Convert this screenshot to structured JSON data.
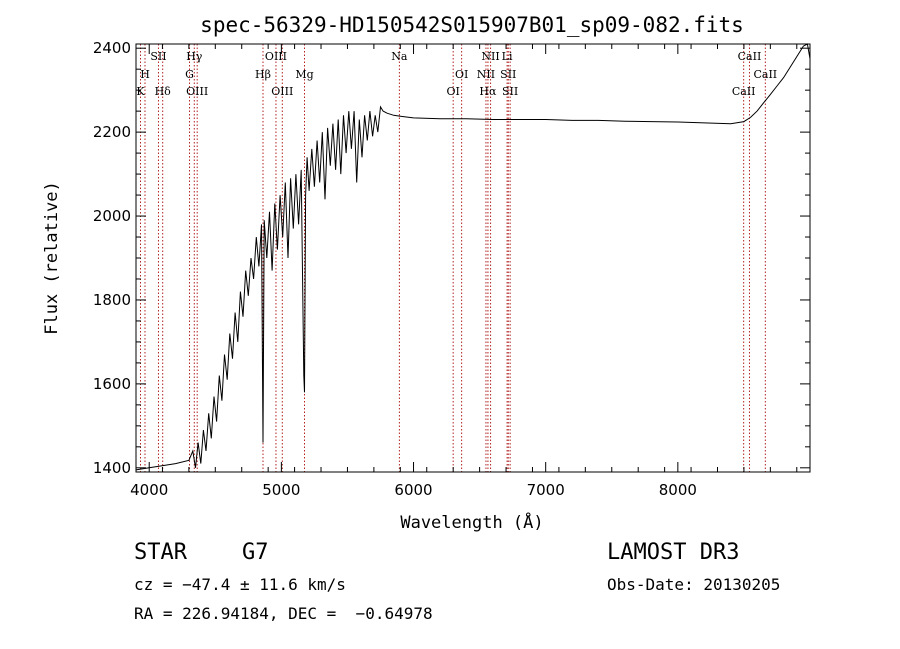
{
  "chart_data": {
    "type": "line",
    "title": "spec-56329-HD150542S015907B01_sp09-082.fits",
    "xlabel": "Wavelength (Å)",
    "ylabel": "Flux (relative)",
    "xlim": [
      3900,
      9000
    ],
    "ylim": [
      1390,
      2410
    ],
    "xticks": [
      4000,
      5000,
      6000,
      7000,
      8000
    ],
    "yticks": [
      1400,
      1600,
      1800,
      2000,
      2200,
      2400
    ],
    "series": [
      {
        "name": "spectrum",
        "x": [
          3900,
          4000,
          4200,
          4300,
          4330,
          4350,
          4370,
          4390,
          4410,
          4430,
          4450,
          4470,
          4490,
          4510,
          4530,
          4550,
          4570,
          4590,
          4610,
          4630,
          4650,
          4670,
          4690,
          4710,
          4730,
          4750,
          4770,
          4790,
          4810,
          4830,
          4850,
          4861,
          4870,
          4890,
          4910,
          4930,
          4950,
          4970,
          4990,
          5010,
          5030,
          5050,
          5070,
          5090,
          5110,
          5130,
          5150,
          5170,
          5175,
          5183,
          5195,
          5210,
          5230,
          5250,
          5270,
          5290,
          5310,
          5330,
          5350,
          5370,
          5390,
          5410,
          5430,
          5450,
          5470,
          5490,
          5510,
          5530,
          5550,
          5570,
          5590,
          5610,
          5630,
          5650,
          5670,
          5690,
          5710,
          5730,
          5750,
          5770,
          5800,
          5850,
          5900,
          6000,
          6200,
          6400,
          6600,
          6800,
          7000,
          7200,
          7400,
          7600,
          7800,
          8000,
          8200,
          8400,
          8500,
          8550,
          8600,
          8650,
          8700,
          8750,
          8800,
          8850,
          8900,
          8950,
          8980,
          9000
        ],
        "y": [
          1395,
          1400,
          1410,
          1418,
          1440,
          1400,
          1460,
          1410,
          1490,
          1440,
          1530,
          1470,
          1570,
          1510,
          1620,
          1560,
          1670,
          1610,
          1720,
          1660,
          1770,
          1700,
          1820,
          1760,
          1870,
          1810,
          1900,
          1850,
          1950,
          1880,
          1980,
          1460,
          1990,
          1900,
          2010,
          1870,
          2030,
          1920,
          2050,
          1950,
          2080,
          1900,
          2090,
          1970,
          2100,
          1980,
          2110,
          1620,
          1580,
          2050,
          2140,
          2060,
          2160,
          2070,
          2180,
          2080,
          2200,
          2040,
          2210,
          2120,
          2220,
          2110,
          2230,
          2100,
          2240,
          2150,
          2250,
          2160,
          2250,
          2080,
          2230,
          2140,
          2240,
          2180,
          2250,
          2190,
          2240,
          2200,
          2260,
          2250,
          2245,
          2240,
          2238,
          2234,
          2232,
          2232,
          2230,
          2230,
          2230,
          2228,
          2228,
          2226,
          2225,
          2224,
          2222,
          2220,
          2225,
          2235,
          2250,
          2270,
          2290,
          2310,
          2330,
          2355,
          2380,
          2405,
          2410,
          2375
        ]
      }
    ]
  },
  "spectral_lines": [
    {
      "label": "K",
      "wl": 3934,
      "row": 3
    },
    {
      "label": "H",
      "wl": 3968,
      "row": 2
    },
    {
      "label": "SII",
      "wl": 4070,
      "row": 1
    },
    {
      "label": "Hδ",
      "wl": 4102,
      "row": 3
    },
    {
      "label": "Hγ",
      "wl": 4341,
      "row": 1
    },
    {
      "label": "G",
      "wl": 4305,
      "row": 2
    },
    {
      "label": "OIII",
      "wl": 4363,
      "row": 3
    },
    {
      "label": "OIII",
      "wl": 4959,
      "row": 1
    },
    {
      "label": "Hβ",
      "wl": 4861,
      "row": 2
    },
    {
      "label": "OIII",
      "wl": 5007,
      "row": 3
    },
    {
      "label": "Mg",
      "wl": 5175,
      "row": 2
    },
    {
      "label": "Na",
      "wl": 5893,
      "row": 1
    },
    {
      "label": "OI",
      "wl": 6364,
      "row": 2
    },
    {
      "label": "OI",
      "wl": 6300,
      "row": 3
    },
    {
      "label": "NII",
      "wl": 6583,
      "row": 1
    },
    {
      "label": "NII",
      "wl": 6548,
      "row": 2
    },
    {
      "label": "Hα",
      "wl": 6563,
      "row": 3
    },
    {
      "label": "Li",
      "wl": 6708,
      "row": 1
    },
    {
      "label": "SII",
      "wl": 6717,
      "row": 2
    },
    {
      "label": "SII",
      "wl": 6731,
      "row": 3
    },
    {
      "label": "CaII",
      "wl": 8542,
      "row": 1
    },
    {
      "label": "CaII",
      "wl": 8662,
      "row": 2
    },
    {
      "label": "CaII",
      "wl": 8498,
      "row": 3
    }
  ],
  "footer": {
    "obj_class": "STAR",
    "subclass": "G7",
    "survey": "LAMOST DR3",
    "cz": "cz = −47.4 ± 11.6 km/s",
    "obs_date": "Obs-Date: 20130205",
    "radec": "RA = 226.94184, DEC =  −0.64978"
  },
  "colors": {
    "spectrum": "#000000",
    "line_marker": "#b22222",
    "axis": "#000000"
  }
}
